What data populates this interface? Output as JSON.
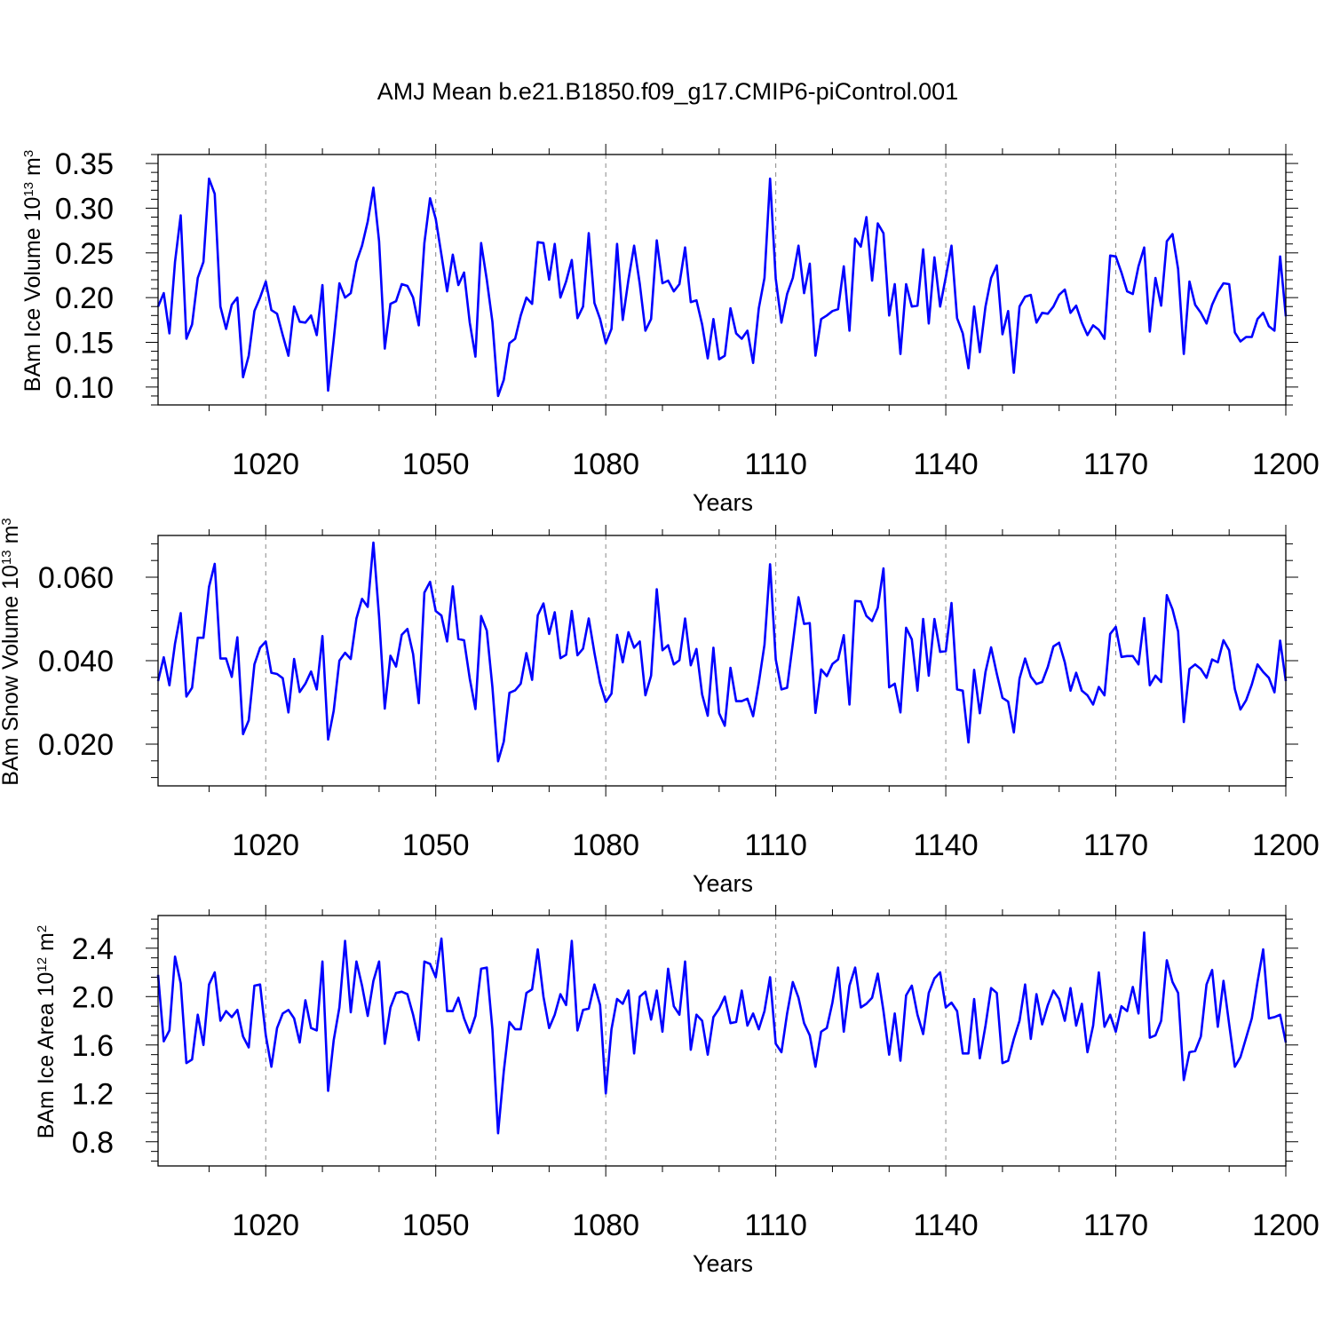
{
  "title": "AMJ Mean b.e21.B1850.f09_g17.CMIP6-piControl.001",
  "chart_data": [
    {
      "type": "line",
      "name": "ice-volume",
      "ylabel": "BAm Ice Volume 10",
      "ylabel_exp": "13",
      "ylabel_unit": " m",
      "ylabel_unit_exp": "3",
      "xlabel": "Years",
      "xlim": [
        1001,
        1200
      ],
      "ylim": [
        0.08,
        0.36
      ],
      "xticks": [
        1020,
        1050,
        1080,
        1110,
        1140,
        1170,
        1200
      ],
      "xtick_labels": [
        "1020",
        "1050",
        "1080",
        "1110",
        "1140",
        "1170",
        "1200"
      ],
      "yticks": [
        0.1,
        0.15,
        0.2,
        0.25,
        0.3,
        0.35
      ],
      "ytick_labels": [
        "0.10",
        "0.15",
        "0.20",
        "0.25",
        "0.30",
        "0.35"
      ],
      "x_start": 1001,
      "color": "#0000ff",
      "values": [
        0.19,
        0.205,
        0.16,
        0.24,
        0.292,
        0.154,
        0.17,
        0.222,
        0.24,
        0.333,
        0.316,
        0.19,
        0.165,
        0.192,
        0.2,
        0.111,
        0.135,
        0.185,
        0.2,
        0.218,
        0.186,
        0.182,
        0.158,
        0.135,
        0.19,
        0.173,
        0.172,
        0.18,
        0.158,
        0.214,
        0.096,
        0.153,
        0.216,
        0.2,
        0.205,
        0.24,
        0.258,
        0.285,
        0.323,
        0.263,
        0.143,
        0.193,
        0.196,
        0.215,
        0.213,
        0.2,
        0.169,
        0.261,
        0.311,
        0.288,
        0.248,
        0.207,
        0.248,
        0.214,
        0.228,
        0.172,
        0.134,
        0.261,
        0.22,
        0.173,
        0.09,
        0.108,
        0.149,
        0.154,
        0.18,
        0.2,
        0.193,
        0.262,
        0.261,
        0.22,
        0.26,
        0.2,
        0.218,
        0.242,
        0.177,
        0.19,
        0.272,
        0.194,
        0.176,
        0.149,
        0.165,
        0.26,
        0.175,
        0.22,
        0.258,
        0.215,
        0.163,
        0.176,
        0.264,
        0.216,
        0.219,
        0.207,
        0.215,
        0.256,
        0.195,
        0.197,
        0.17,
        0.132,
        0.176,
        0.131,
        0.135,
        0.188,
        0.16,
        0.154,
        0.163,
        0.127,
        0.188,
        0.222,
        0.333,
        0.221,
        0.172,
        0.204,
        0.222,
        0.258,
        0.205,
        0.238,
        0.135,
        0.176,
        0.18,
        0.185,
        0.187,
        0.235,
        0.163,
        0.266,
        0.257,
        0.29,
        0.219,
        0.283,
        0.272,
        0.18,
        0.215,
        0.137,
        0.215,
        0.19,
        0.191,
        0.254,
        0.171,
        0.245,
        0.19,
        0.223,
        0.258,
        0.177,
        0.16,
        0.121,
        0.19,
        0.139,
        0.19,
        0.222,
        0.236,
        0.159,
        0.185,
        0.116,
        0.19,
        0.201,
        0.203,
        0.172,
        0.183,
        0.182,
        0.19,
        0.203,
        0.209,
        0.183,
        0.191,
        0.172,
        0.158,
        0.169,
        0.164,
        0.154,
        0.247,
        0.246,
        0.228,
        0.207,
        0.204,
        0.235,
        0.256,
        0.162,
        0.222,
        0.191,
        0.263,
        0.271,
        0.232,
        0.137,
        0.218,
        0.192,
        0.183,
        0.171,
        0.192,
        0.206,
        0.216,
        0.215,
        0.161,
        0.151,
        0.156,
        0.156,
        0.176,
        0.183,
        0.168,
        0.163,
        0.246,
        0.179
      ]
    },
    {
      "type": "line",
      "name": "snow-volume",
      "ylabel": "BAm Snow Volume 10",
      "ylabel_exp": "13",
      "ylabel_unit": " m",
      "ylabel_unit_exp": "3",
      "xlabel": "Years",
      "xlim": [
        1001,
        1200
      ],
      "ylim": [
        0.01,
        0.07
      ],
      "xticks": [
        1020,
        1050,
        1080,
        1110,
        1140,
        1170,
        1200
      ],
      "xtick_labels": [
        "1020",
        "1050",
        "1080",
        "1110",
        "1140",
        "1170",
        "1200"
      ],
      "yticks": [
        0.02,
        0.04,
        0.06
      ],
      "ytick_labels": [
        "0.020",
        "0.040",
        "0.060"
      ],
      "x_start": 1001,
      "color": "#0000ff",
      "values": [
        0.0351,
        0.0408,
        0.0341,
        0.0441,
        0.0514,
        0.0314,
        0.0335,
        0.0455,
        0.0455,
        0.0577,
        0.0632,
        0.0405,
        0.0405,
        0.0361,
        0.0456,
        0.0224,
        0.0257,
        0.0391,
        0.0431,
        0.0446,
        0.0371,
        0.0368,
        0.0358,
        0.0276,
        0.0404,
        0.0325,
        0.0345,
        0.0374,
        0.0331,
        0.0459,
        0.0211,
        0.028,
        0.04,
        0.0419,
        0.0404,
        0.0501,
        0.0548,
        0.0529,
        0.0683,
        0.0505,
        0.0285,
        0.0412,
        0.0386,
        0.0462,
        0.0476,
        0.0416,
        0.0298,
        0.0563,
        0.0589,
        0.0519,
        0.0508,
        0.0446,
        0.0578,
        0.0452,
        0.0449,
        0.0357,
        0.0284,
        0.0507,
        0.0472,
        0.0337,
        0.0159,
        0.0206,
        0.0323,
        0.0329,
        0.0345,
        0.0418,
        0.0354,
        0.0509,
        0.0537,
        0.0464,
        0.0516,
        0.0406,
        0.0414,
        0.0519,
        0.0413,
        0.0429,
        0.0501,
        0.0419,
        0.0346,
        0.0301,
        0.0321,
        0.0462,
        0.0396,
        0.0468,
        0.0431,
        0.0446,
        0.0317,
        0.0364,
        0.0571,
        0.0425,
        0.0437,
        0.0391,
        0.0401,
        0.0501,
        0.0389,
        0.0428,
        0.0319,
        0.0268,
        0.0431,
        0.0274,
        0.0244,
        0.0383,
        0.0303,
        0.0303,
        0.0309,
        0.0267,
        0.0347,
        0.0438,
        0.0631,
        0.0403,
        0.0331,
        0.0335,
        0.0441,
        0.0552,
        0.0488,
        0.049,
        0.0275,
        0.0379,
        0.0363,
        0.0392,
        0.0403,
        0.0461,
        0.0295,
        0.0543,
        0.0542,
        0.0507,
        0.0495,
        0.0527,
        0.0621,
        0.0336,
        0.0345,
        0.0276,
        0.0479,
        0.0451,
        0.0328,
        0.05,
        0.0364,
        0.05,
        0.0421,
        0.0423,
        0.0538,
        0.0331,
        0.0328,
        0.0204,
        0.0378,
        0.0274,
        0.0373,
        0.0432,
        0.0369,
        0.0311,
        0.0302,
        0.0228,
        0.0357,
        0.0405,
        0.0362,
        0.0344,
        0.0349,
        0.0385,
        0.0434,
        0.0443,
        0.0396,
        0.0328,
        0.0371,
        0.0328,
        0.0317,
        0.0295,
        0.0337,
        0.0317,
        0.0464,
        0.0481,
        0.0409,
        0.0411,
        0.0411,
        0.0391,
        0.0502,
        0.0341,
        0.0364,
        0.0349,
        0.0557,
        0.0523,
        0.047,
        0.0253,
        0.038,
        0.0391,
        0.038,
        0.0359,
        0.0403,
        0.0396,
        0.0449,
        0.0425,
        0.0332,
        0.0283,
        0.0305,
        0.0343,
        0.0391,
        0.0373,
        0.0359,
        0.0324,
        0.0448,
        0.0351
      ]
    },
    {
      "type": "line",
      "name": "ice-area",
      "ylabel": "BAm Ice Area 10",
      "ylabel_exp": "12",
      "ylabel_unit": " m",
      "ylabel_unit_exp": "2",
      "xlabel": "Years",
      "xlim": [
        1001,
        1200
      ],
      "ylim": [
        0.6,
        2.67
      ],
      "xticks": [
        1020,
        1050,
        1080,
        1110,
        1140,
        1170,
        1200
      ],
      "xtick_labels": [
        "1020",
        "1050",
        "1080",
        "1110",
        "1140",
        "1170",
        "1200"
      ],
      "yticks": [
        0.8,
        1.2,
        1.6,
        2.0,
        2.4
      ],
      "ytick_labels": [
        "0.8",
        "1.2",
        "1.6",
        "2.0",
        "2.4"
      ],
      "x_start": 1001,
      "color": "#0000ff",
      "values": [
        2.18,
        1.63,
        1.72,
        2.33,
        2.11,
        1.45,
        1.48,
        1.85,
        1.6,
        2.1,
        2.2,
        1.8,
        1.88,
        1.83,
        1.89,
        1.67,
        1.58,
        2.09,
        2.1,
        1.68,
        1.42,
        1.74,
        1.86,
        1.89,
        1.82,
        1.62,
        1.97,
        1.74,
        1.72,
        2.29,
        1.22,
        1.64,
        1.91,
        2.46,
        1.87,
        2.29,
        2.09,
        1.84,
        2.13,
        2.29,
        1.61,
        1.91,
        2.03,
        2.04,
        2.02,
        1.85,
        1.64,
        2.29,
        2.27,
        2.16,
        2.48,
        1.88,
        1.88,
        1.99,
        1.82,
        1.7,
        1.84,
        2.23,
        2.24,
        1.73,
        0.87,
        1.38,
        1.79,
        1.73,
        1.73,
        2.03,
        2.06,
        2.39,
        2.0,
        1.74,
        1.85,
        2.02,
        1.93,
        2.46,
        1.72,
        1.89,
        1.9,
        2.1,
        1.93,
        1.2,
        1.73,
        1.98,
        1.94,
        2.05,
        1.53,
        2.0,
        2.04,
        1.81,
        2.05,
        1.71,
        2.23,
        1.92,
        1.85,
        2.29,
        1.56,
        1.85,
        1.8,
        1.52,
        1.83,
        1.9,
        2.0,
        1.78,
        1.79,
        2.05,
        1.76,
        1.86,
        1.73,
        1.88,
        2.16,
        1.61,
        1.54,
        1.86,
        2.12,
        1.99,
        1.78,
        1.68,
        1.42,
        1.71,
        1.74,
        1.95,
        2.24,
        1.71,
        2.09,
        2.24,
        1.91,
        1.94,
        1.99,
        2.19,
        1.88,
        1.52,
        1.86,
        1.47,
        2.01,
        2.09,
        1.85,
        1.69,
        2.03,
        2.15,
        2.2,
        1.91,
        1.95,
        1.88,
        1.53,
        1.53,
        1.98,
        1.49,
        1.76,
        2.07,
        2.03,
        1.45,
        1.47,
        1.65,
        1.8,
        2.1,
        1.65,
        2.02,
        1.77,
        1.93,
        2.05,
        1.98,
        1.8,
        2.07,
        1.76,
        1.94,
        1.54,
        1.76,
        2.2,
        1.75,
        1.85,
        1.71,
        1.92,
        1.88,
        2.08,
        1.86,
        2.53,
        1.66,
        1.68,
        1.8,
        2.3,
        2.12,
        2.03,
        1.31,
        1.54,
        1.55,
        1.67,
        2.1,
        2.22,
        1.75,
        2.13,
        1.77,
        1.42,
        1.5,
        1.66,
        1.82,
        2.12,
        2.39,
        1.82,
        1.83,
        1.85,
        1.62
      ]
    }
  ]
}
